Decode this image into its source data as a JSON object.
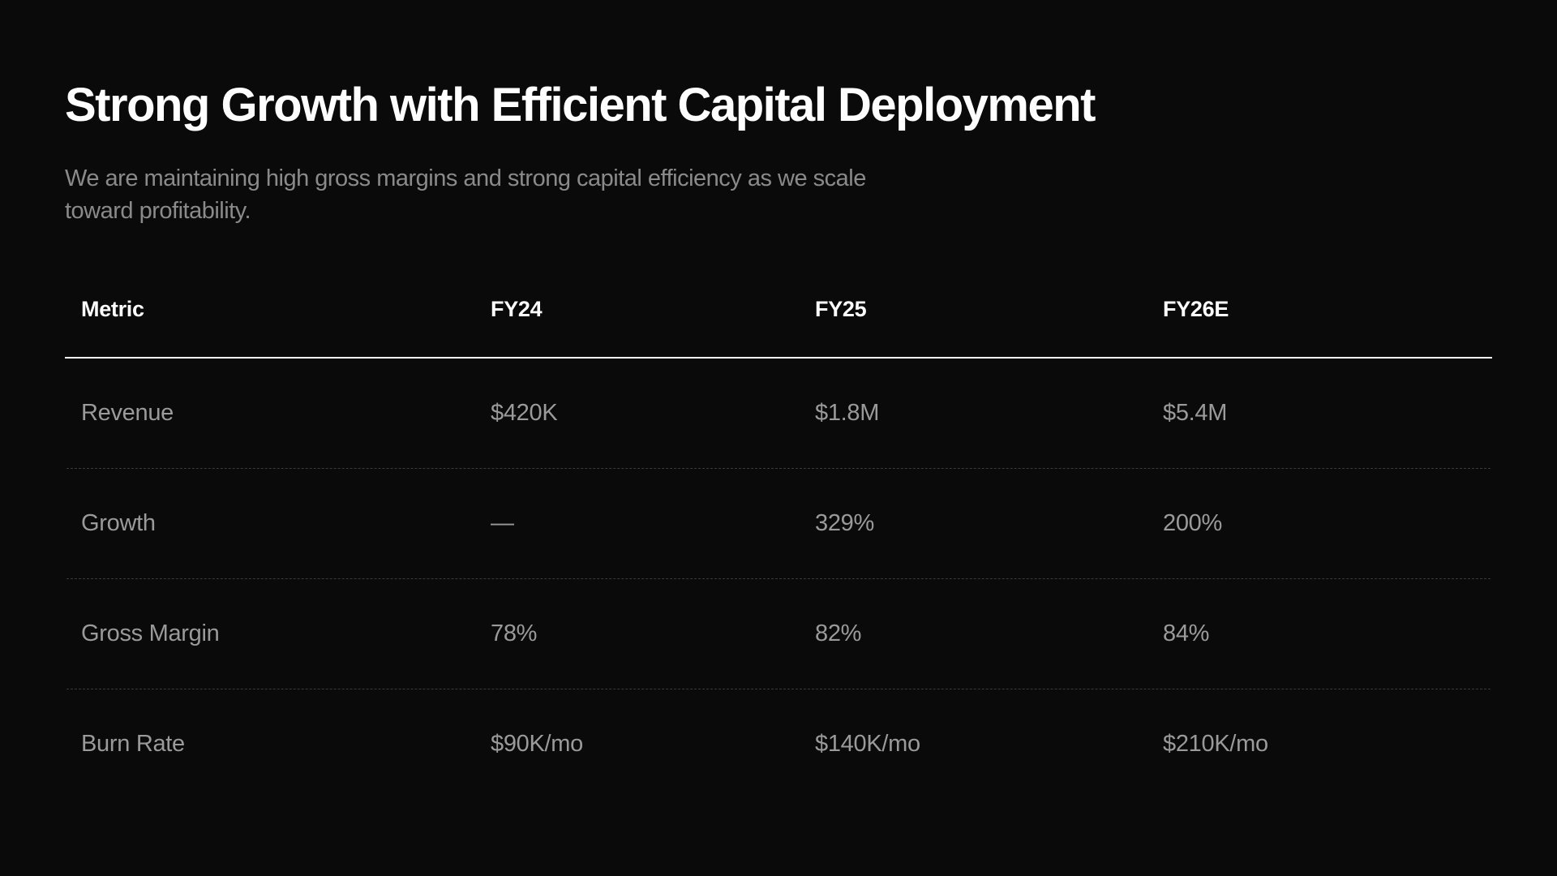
{
  "header": {
    "title": "Strong Growth with Efficient Capital Deployment",
    "subtitle": "We are maintaining high gross margins and strong capital efficiency as we scale toward profitability."
  },
  "table": {
    "columns": [
      "Metric",
      "FY24",
      "FY25",
      "FY26E"
    ],
    "rows": [
      [
        "Revenue",
        "$420K",
        "$1.8M",
        "$5.4M"
      ],
      [
        "Growth",
        "—",
        "329%",
        "200%"
      ],
      [
        "Gross Margin",
        "78%",
        "82%",
        "84%"
      ],
      [
        "Burn Rate",
        "$90K/mo",
        "$140K/mo",
        "$210K/mo"
      ]
    ]
  }
}
